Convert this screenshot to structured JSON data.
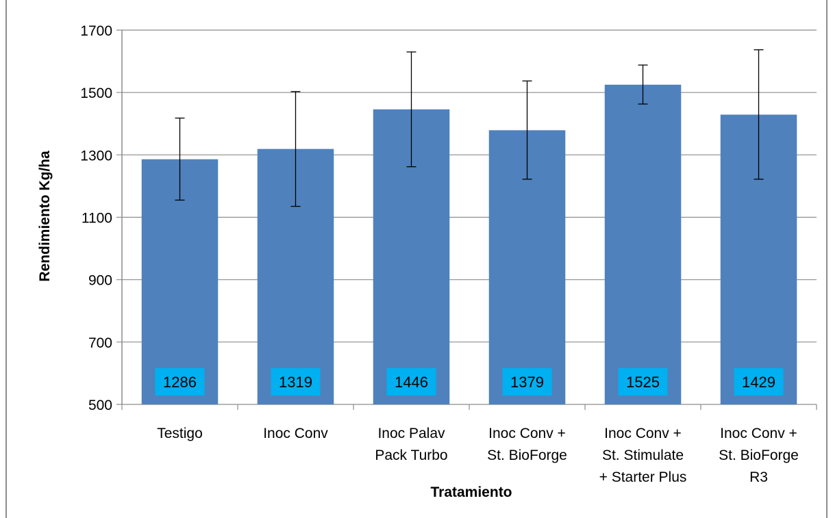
{
  "chart_data": {
    "type": "bar",
    "title": "",
    "xlabel": "Tratamiento",
    "ylabel": "Rendimiento Kg/ha",
    "ylim": [
      500,
      1700
    ],
    "yticks": [
      500,
      700,
      900,
      1100,
      1300,
      1500,
      1700
    ],
    "grid": true,
    "legend": "none",
    "categories": [
      [
        "Testigo"
      ],
      [
        "Inoc Conv"
      ],
      [
        "Inoc Palav",
        "Pack Turbo"
      ],
      [
        "Inoc Conv +",
        "St. BioForge"
      ],
      [
        "Inoc Conv +",
        "St. Stimulate",
        "+ Starter Plus"
      ],
      [
        "Inoc Conv +",
        "St. BioForge",
        "R3"
      ]
    ],
    "values": [
      1286,
      1319,
      1446,
      1379,
      1525,
      1429
    ],
    "error_bars": [
      [
        1155,
        1418
      ],
      [
        1135,
        1503
      ],
      [
        1262,
        1630
      ],
      [
        1222,
        1537
      ],
      [
        1463,
        1588
      ],
      [
        1222,
        1637
      ]
    ],
    "bar_color": "#4f81bd",
    "data_label_bg": "#00b0f0",
    "grid_color": "#8c8c8c"
  }
}
